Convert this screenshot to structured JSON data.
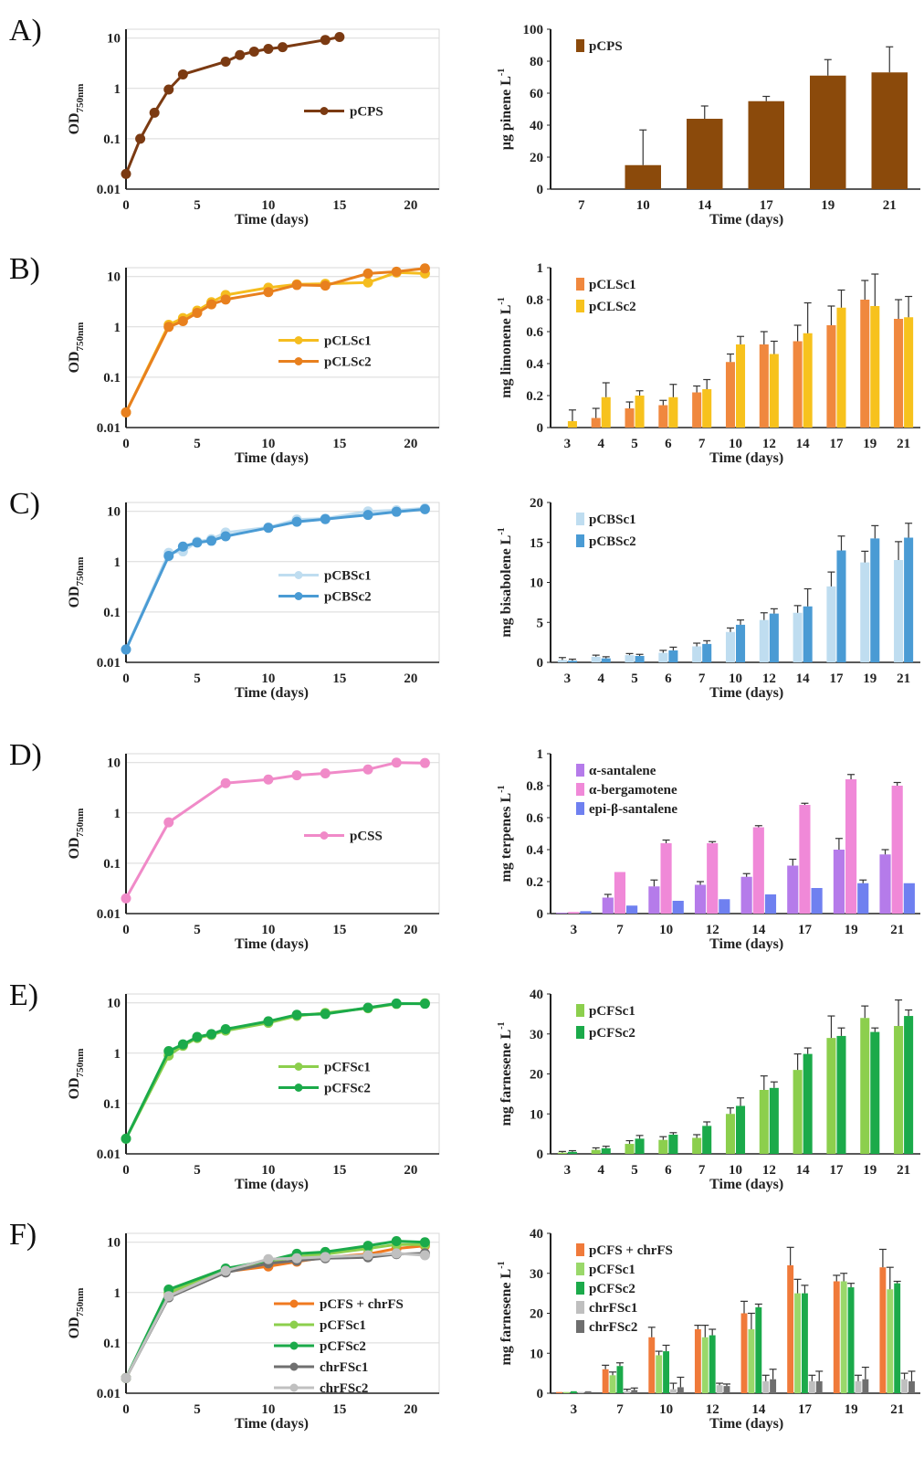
{
  "panel_labels": [
    "A)",
    "B)",
    "C)",
    "D)",
    "E)",
    "F)"
  ],
  "chart_data": [
    {
      "panel": "A)",
      "kind": "growth",
      "type": "line",
      "xlabel": "Time (days)",
      "ylabel": "OD750nm",
      "xlim": [
        0,
        22
      ],
      "xticks": [
        0,
        5,
        10,
        15,
        20
      ],
      "yscale": "log",
      "ylim": [
        0.01,
        15
      ],
      "yticks": [
        "0.01",
        "0.1",
        "1",
        "10"
      ],
      "legend_position": "center-right",
      "series": [
        {
          "name": "pCPS",
          "color": "#7B3A12",
          "x": [
            0,
            1,
            2,
            3,
            4,
            7,
            8,
            9,
            10,
            11,
            14,
            15
          ],
          "y": [
            0.02,
            0.1,
            0.33,
            0.95,
            1.9,
            3.4,
            4.6,
            5.4,
            6.1,
            6.6,
            9.2,
            10.5
          ]
        }
      ]
    },
    {
      "panel": "A)",
      "kind": "production",
      "type": "bar",
      "xlabel": "Time (days)",
      "ylabel": "µg pinene L-1",
      "categories": [
        "7",
        "10",
        "14",
        "17",
        "19",
        "21"
      ],
      "ylim": [
        0,
        100
      ],
      "yticks": [
        0,
        20,
        40,
        60,
        80,
        100
      ],
      "legend_position": "top-left",
      "series": [
        {
          "name": "pCPS",
          "color": "#8B4A0B",
          "values": [
            0,
            15,
            44,
            55,
            71,
            73
          ],
          "errors": [
            0,
            22,
            8,
            3,
            10,
            16
          ]
        }
      ]
    },
    {
      "panel": "B)",
      "kind": "growth",
      "type": "line",
      "xlabel": "Time (days)",
      "ylabel": "OD750nm",
      "xlim": [
        0,
        22
      ],
      "xticks": [
        0,
        5,
        10,
        15,
        20
      ],
      "yscale": "log",
      "ylim": [
        0.01,
        15
      ],
      "yticks": [
        "0.01",
        "0.1",
        "1",
        "10"
      ],
      "legend_position": "center-right",
      "series": [
        {
          "name": "pCLSc1",
          "color": "#F5BD1F",
          "x": [
            0,
            3,
            4,
            5,
            6,
            7,
            10,
            12,
            14,
            17,
            19,
            21
          ],
          "y": [
            0.02,
            1.1,
            1.5,
            2.1,
            3.1,
            4.3,
            6.0,
            7.0,
            7.2,
            7.6,
            12.0,
            11.5
          ]
        },
        {
          "name": "pCLSc2",
          "color": "#E8801E",
          "x": [
            0,
            3,
            4,
            5,
            6,
            7,
            10,
            12,
            14,
            17,
            19,
            21
          ],
          "y": [
            0.02,
            1.0,
            1.3,
            1.9,
            2.8,
            3.5,
            4.9,
            6.8,
            6.6,
            11.5,
            12.5,
            14.5
          ]
        }
      ]
    },
    {
      "panel": "B)",
      "kind": "production",
      "type": "bar",
      "xlabel": "Time (days)",
      "ylabel": "mg limonene L-1",
      "categories": [
        "3",
        "4",
        "5",
        "6",
        "7",
        "10",
        "12",
        "14",
        "17",
        "19",
        "21"
      ],
      "ylim": [
        0,
        1
      ],
      "yticks": [
        0,
        0.2,
        0.4,
        0.6,
        0.8,
        1
      ],
      "legend_position": "top-left",
      "series": [
        {
          "name": "pCLSc1",
          "color": "#F0883E",
          "values": [
            0.0,
            0.06,
            0.12,
            0.14,
            0.22,
            0.41,
            0.52,
            0.54,
            0.64,
            0.8,
            0.68
          ],
          "errors": [
            0.0,
            0.06,
            0.04,
            0.03,
            0.04,
            0.05,
            0.08,
            0.1,
            0.12,
            0.12,
            0.12
          ]
        },
        {
          "name": "pCLSc2",
          "color": "#F7C21D",
          "values": [
            0.04,
            0.19,
            0.2,
            0.19,
            0.24,
            0.52,
            0.46,
            0.59,
            0.75,
            0.76,
            0.69
          ],
          "errors": [
            0.07,
            0.09,
            0.03,
            0.08,
            0.06,
            0.05,
            0.08,
            0.19,
            0.11,
            0.2,
            0.13
          ]
        }
      ]
    },
    {
      "panel": "C)",
      "kind": "growth",
      "type": "line",
      "xlabel": "Time (days)",
      "ylabel": "OD750nm",
      "xlim": [
        0,
        22
      ],
      "xticks": [
        0,
        5,
        10,
        15,
        20
      ],
      "yscale": "log",
      "ylim": [
        0.01,
        15
      ],
      "yticks": [
        "0.01",
        "0.1",
        "1",
        "10"
      ],
      "legend_position": "center-right",
      "series": [
        {
          "name": "pCBSc1",
          "color": "#BFDDF0",
          "x": [
            0,
            3,
            4,
            5,
            6,
            7,
            10,
            12,
            14,
            17,
            19,
            21
          ],
          "y": [
            0.018,
            1.5,
            1.6,
            2.5,
            2.8,
            3.8,
            4.8,
            6.9,
            7.2,
            10.0,
            10.5,
            11.5
          ]
        },
        {
          "name": "pCBSc2",
          "color": "#4A9BD4",
          "x": [
            0,
            3,
            4,
            5,
            6,
            7,
            10,
            12,
            14,
            17,
            19,
            21
          ],
          "y": [
            0.018,
            1.3,
            2.0,
            2.4,
            2.6,
            3.2,
            4.7,
            6.2,
            7.0,
            8.5,
            9.8,
            11.0
          ]
        }
      ]
    },
    {
      "panel": "C)",
      "kind": "production",
      "type": "bar",
      "xlabel": "Time (days)",
      "ylabel": "mg bisabolene L-1",
      "categories": [
        "3",
        "4",
        "5",
        "6",
        "7",
        "10",
        "12",
        "14",
        "17",
        "19",
        "21"
      ],
      "ylim": [
        0,
        20
      ],
      "yticks": [
        0,
        5,
        10,
        15,
        20
      ],
      "legend_position": "top-left",
      "series": [
        {
          "name": "pCBSc1",
          "color": "#BFDDF0",
          "values": [
            0.3,
            0.7,
            0.9,
            1.2,
            2.0,
            3.8,
            5.3,
            6.2,
            9.5,
            12.5,
            12.8
          ],
          "errors": [
            0.3,
            0.2,
            0.2,
            0.3,
            0.4,
            0.5,
            0.9,
            0.9,
            1.8,
            1.4,
            2.3
          ]
        },
        {
          "name": "pCBSc2",
          "color": "#4A9BD4",
          "values": [
            0.2,
            0.5,
            0.8,
            1.5,
            2.3,
            4.7,
            6.1,
            7.0,
            14.0,
            15.5,
            15.6
          ],
          "errors": [
            0.2,
            0.2,
            0.2,
            0.4,
            0.4,
            0.6,
            0.6,
            2.2,
            1.8,
            1.6,
            1.8
          ]
        }
      ]
    },
    {
      "panel": "D)",
      "kind": "growth",
      "type": "line",
      "xlabel": "Time (days)",
      "ylabel": "OD750nm",
      "xlim": [
        0,
        22
      ],
      "xticks": [
        0,
        5,
        10,
        15,
        20
      ],
      "yscale": "log",
      "ylim": [
        0.01,
        15
      ],
      "yticks": [
        "0.01",
        "0.1",
        "1",
        "10"
      ],
      "legend_position": "center-right",
      "series": [
        {
          "name": "pCSS",
          "color": "#F08AC8",
          "x": [
            0,
            3,
            7,
            10,
            12,
            14,
            17,
            19,
            21
          ],
          "y": [
            0.02,
            0.65,
            3.9,
            4.6,
            5.6,
            6.1,
            7.3,
            10.0,
            9.8
          ]
        }
      ]
    },
    {
      "panel": "D)",
      "kind": "production",
      "type": "bar",
      "xlabel": "Time (days)",
      "ylabel": "mg terpenes L-1",
      "categories": [
        "3",
        "7",
        "10",
        "12",
        "14",
        "17",
        "19",
        "21"
      ],
      "ylim": [
        0,
        1
      ],
      "yticks": [
        0,
        0.2,
        0.4,
        0.6,
        0.8,
        1
      ],
      "legend_position": "top-left",
      "series": [
        {
          "name": "α-santalene",
          "color": "#B57BEA",
          "values": [
            0.005,
            0.1,
            0.17,
            0.18,
            0.23,
            0.3,
            0.4,
            0.37
          ],
          "errors": [
            0.0,
            0.02,
            0.04,
            0.02,
            0.02,
            0.04,
            0.07,
            0.03
          ]
        },
        {
          "name": "α-bergamotene",
          "color": "#F089D8",
          "values": [
            0.01,
            0.26,
            0.44,
            0.44,
            0.54,
            0.68,
            0.84,
            0.8
          ],
          "errors": [
            0.0,
            0.0,
            0.02,
            0.01,
            0.01,
            0.01,
            0.03,
            0.02
          ]
        },
        {
          "name": "epi-β-santalene",
          "color": "#6F80F0",
          "values": [
            0.015,
            0.05,
            0.08,
            0.09,
            0.12,
            0.16,
            0.19,
            0.19
          ],
          "errors": [
            0.0,
            0.0,
            0.0,
            0.0,
            0.0,
            0.0,
            0.02,
            0.0
          ]
        }
      ]
    },
    {
      "panel": "E)",
      "kind": "growth",
      "type": "line",
      "xlabel": "Time (days)",
      "ylabel": "OD750nm",
      "xlim": [
        0,
        22
      ],
      "xticks": [
        0,
        5,
        10,
        15,
        20
      ],
      "yscale": "log",
      "ylim": [
        0.01,
        15
      ],
      "yticks": [
        "0.01",
        "0.1",
        "1",
        "10"
      ],
      "legend_position": "center-right",
      "series": [
        {
          "name": "pCFSc1",
          "color": "#8CCF4D",
          "x": [
            0,
            3,
            4,
            5,
            6,
            7,
            10,
            12,
            14,
            17,
            19,
            21
          ],
          "y": [
            0.02,
            0.9,
            1.4,
            2.0,
            2.3,
            2.8,
            4.0,
            5.5,
            6.3,
            7.8,
            9.5,
            9.8
          ]
        },
        {
          "name": "pCFSc2",
          "color": "#1BAA4A",
          "x": [
            0,
            3,
            4,
            5,
            6,
            7,
            10,
            12,
            14,
            17,
            19,
            21
          ],
          "y": [
            0.02,
            1.1,
            1.5,
            2.1,
            2.4,
            3.0,
            4.3,
            5.8,
            6.0,
            8.0,
            9.7,
            9.6
          ]
        }
      ]
    },
    {
      "panel": "E)",
      "kind": "production",
      "type": "bar",
      "xlabel": "Time (days)",
      "ylabel": "mg farnesene L-1",
      "categories": [
        "3",
        "4",
        "5",
        "6",
        "7",
        "10",
        "12",
        "14",
        "17",
        "19",
        "21"
      ],
      "ylim": [
        0,
        40
      ],
      "yticks": [
        0,
        10,
        20,
        30,
        40
      ],
      "legend_position": "top-left",
      "series": [
        {
          "name": "pCFSc1",
          "color": "#8CCF4D",
          "values": [
            0.3,
            1.0,
            2.5,
            3.5,
            4.0,
            10.0,
            16.0,
            21.0,
            29.0,
            34.0,
            32.0
          ],
          "errors": [
            0.3,
            0.5,
            0.8,
            0.8,
            0.8,
            1.5,
            3.5,
            4.0,
            5.5,
            3.0,
            6.5
          ]
        },
        {
          "name": "pCFSc2",
          "color": "#1BAA4A",
          "values": [
            0.5,
            1.4,
            3.8,
            4.8,
            7.0,
            12.0,
            16.5,
            25.0,
            29.5,
            30.5,
            34.5
          ],
          "errors": [
            0.3,
            0.5,
            0.8,
            0.5,
            1.0,
            2.0,
            1.5,
            1.5,
            2.0,
            1.0,
            1.5
          ]
        }
      ]
    },
    {
      "panel": "F)",
      "kind": "growth",
      "type": "line",
      "xlabel": "Time (days)",
      "ylabel": "OD750nm",
      "xlim": [
        0,
        22
      ],
      "xticks": [
        0,
        5,
        10,
        15,
        20
      ],
      "yscale": "log",
      "ylim": [
        0.01,
        15
      ],
      "yticks": [
        "0.01",
        "0.1",
        "1",
        "10"
      ],
      "legend_position": "bottom-right",
      "series": [
        {
          "name": "pCFS + chrFS",
          "color": "#F07A20",
          "x": [
            0,
            3,
            7,
            10,
            12,
            14,
            17,
            19,
            21
          ],
          "y": [
            0.02,
            0.9,
            2.6,
            3.3,
            4.1,
            5.0,
            5.8,
            7.5,
            8.5
          ]
        },
        {
          "name": "pCFSc1",
          "color": "#8CCF4D",
          "x": [
            0,
            3,
            7,
            10,
            12,
            14,
            17,
            19,
            21
          ],
          "y": [
            0.02,
            1.0,
            2.8,
            4.0,
            5.2,
            5.8,
            7.5,
            9.0,
            9.0
          ]
        },
        {
          "name": "pCFSc2",
          "color": "#1BAA4A",
          "x": [
            0,
            3,
            7,
            10,
            12,
            14,
            17,
            19,
            21
          ],
          "y": [
            0.02,
            1.15,
            3.0,
            4.3,
            5.9,
            6.4,
            8.5,
            10.5,
            10.0
          ]
        },
        {
          "name": "chrFSc1",
          "color": "#707070",
          "x": [
            0,
            3,
            7,
            10,
            12,
            14,
            17,
            19,
            21
          ],
          "y": [
            0.02,
            0.8,
            2.5,
            3.8,
            4.3,
            4.8,
            5.0,
            5.8,
            6.0
          ]
        },
        {
          "name": "chrFSc2",
          "color": "#C0C0C0",
          "x": [
            0,
            3,
            7,
            10,
            12,
            14,
            17,
            19,
            21
          ],
          "y": [
            0.02,
            0.85,
            2.7,
            4.6,
            4.8,
            5.1,
            5.5,
            6.0,
            5.5
          ]
        }
      ]
    },
    {
      "panel": "F)",
      "kind": "production",
      "type": "bar",
      "xlabel": "Time (days)",
      "ylabel": "mg farnesene L-1",
      "categories": [
        "3",
        "7",
        "10",
        "12",
        "14",
        "17",
        "19",
        "21"
      ],
      "ylim": [
        0,
        40
      ],
      "yticks": [
        0,
        10,
        20,
        30,
        40
      ],
      "legend_position": "top-left",
      "series": [
        {
          "name": "pCFS + chrFS",
          "color": "#F07A3A",
          "values": [
            0.3,
            6.0,
            14.0,
            16.0,
            20.0,
            32.0,
            28.0,
            31.5
          ],
          "errors": [
            0.0,
            1.0,
            2.5,
            1.0,
            3.0,
            4.5,
            1.5,
            4.5
          ]
        },
        {
          "name": "pCFSc1",
          "color": "#9AD86A",
          "values": [
            0.3,
            4.5,
            9.5,
            14.0,
            16.0,
            25.0,
            28.0,
            26.0
          ],
          "errors": [
            0.0,
            0.8,
            1.0,
            3.0,
            4.0,
            3.5,
            2.0,
            5.5
          ]
        },
        {
          "name": "pCFSc2",
          "color": "#1BAA4A",
          "values": [
            0.5,
            6.8,
            10.5,
            14.5,
            21.5,
            25.0,
            26.5,
            27.5
          ],
          "errors": [
            0.0,
            0.8,
            1.5,
            1.5,
            0.8,
            2.0,
            1.0,
            0.5
          ]
        },
        {
          "name": "chrFSc1",
          "color": "#BFBFBF",
          "values": [
            0.3,
            0.5,
            1.0,
            2.0,
            3.0,
            3.0,
            3.0,
            3.5
          ],
          "errors": [
            0.0,
            0.5,
            1.5,
            0.5,
            1.5,
            1.5,
            1.5,
            1.5
          ]
        },
        {
          "name": "chrFSc2",
          "color": "#6E6E6E",
          "values": [
            0.5,
            0.8,
            1.5,
            1.8,
            3.5,
            3.0,
            3.5,
            3.0
          ],
          "errors": [
            0.0,
            0.5,
            2.5,
            0.5,
            2.5,
            2.5,
            3.0,
            2.5
          ]
        }
      ]
    }
  ]
}
